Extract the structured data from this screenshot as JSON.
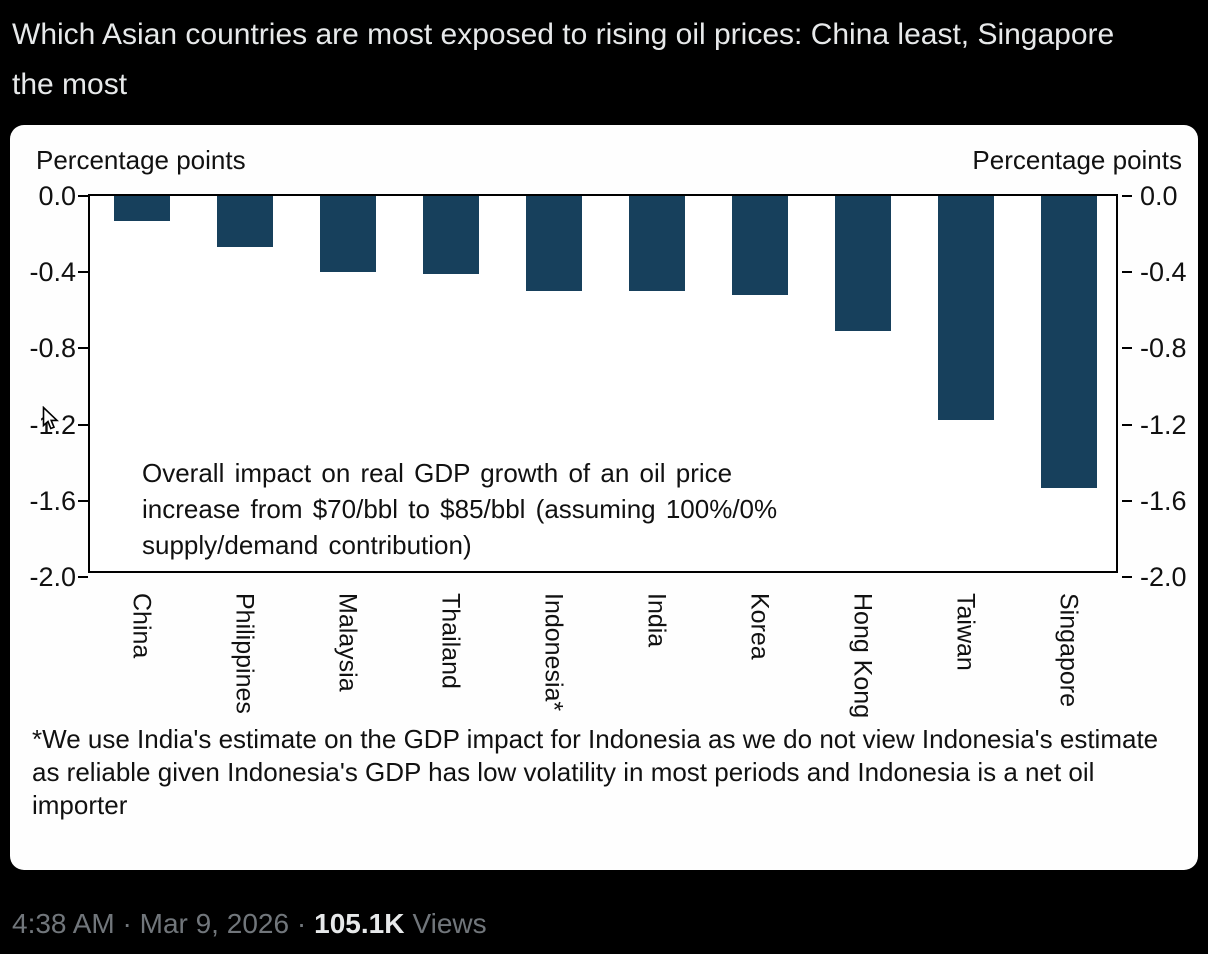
{
  "tweet": {
    "title": "Which Asian countries are most exposed to rising oil prices: China least, Singapore the most",
    "meta_datetime": "4:38 AM · Mar 9, 2026 ·",
    "views_count": "105.1K",
    "views_label": "Views"
  },
  "chart_data": {
    "type": "bar",
    "title": "",
    "left_axis_title": "Percentage points",
    "right_axis_title": "Percentage points",
    "categories": [
      "China",
      "Philippines",
      "Malaysia",
      "Thailand",
      "Indonesia*",
      "India",
      "Korea",
      "Hong Kong",
      "Taiwan",
      "Singapore"
    ],
    "values": [
      -0.13,
      -0.27,
      -0.4,
      -0.41,
      -0.5,
      -0.5,
      -0.52,
      -0.71,
      -1.18,
      -1.54
    ],
    "ylim": [
      -2.0,
      0.0
    ],
    "yticks": [
      0.0,
      -0.4,
      -0.8,
      -1.2,
      -1.6,
      -2.0
    ],
    "ytick_labels": [
      "0.0",
      "-0.4",
      "-0.8",
      "-1.2",
      "-1.6",
      "-2.0"
    ],
    "grid": false,
    "legend": "none",
    "bar_color": "#17405c",
    "annotation": "Overall impact on real GDP growth of an oil price increase from $70/bbl to $85/bbl (assuming 100%/0% supply/demand contribution)",
    "footnote": "*We use India's estimate on the GDP impact for Indonesia as we do not view Indonesia's estimate as reliable given Indonesia's GDP has low volatility in most periods and Indonesia is a net oil importer"
  },
  "colors": {
    "page_background": "#000000",
    "card_background": "#fefefe",
    "bar": "#17405c",
    "title_text": "#e7e9ea",
    "meta_text": "#71767b"
  }
}
